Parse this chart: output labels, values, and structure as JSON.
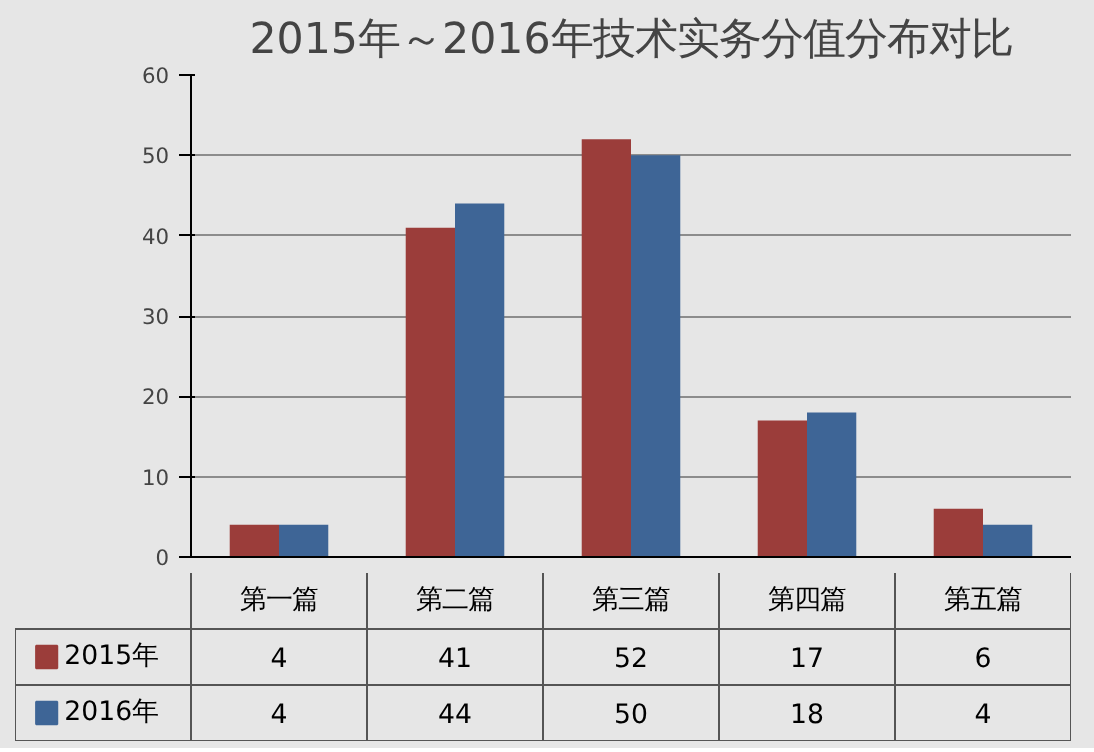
{
  "chart_data": {
    "type": "bar",
    "title": "2015年～2016年技术实务分值分布对比",
    "categories": [
      "第一篇",
      "第二篇",
      "第三篇",
      "第四篇",
      "第五篇"
    ],
    "series": [
      {
        "name": "2015年",
        "color": "#9b3d3a",
        "values": [
          4,
          41,
          52,
          17,
          6
        ]
      },
      {
        "name": "2016年",
        "color": "#3e6596",
        "values": [
          4,
          44,
          50,
          18,
          4
        ]
      }
    ],
    "ylim": [
      0,
      60
    ],
    "yticks": [
      0,
      10,
      20,
      30,
      40,
      50,
      60
    ],
    "grid": "y",
    "legend": "bottom",
    "data_labels": true
  }
}
